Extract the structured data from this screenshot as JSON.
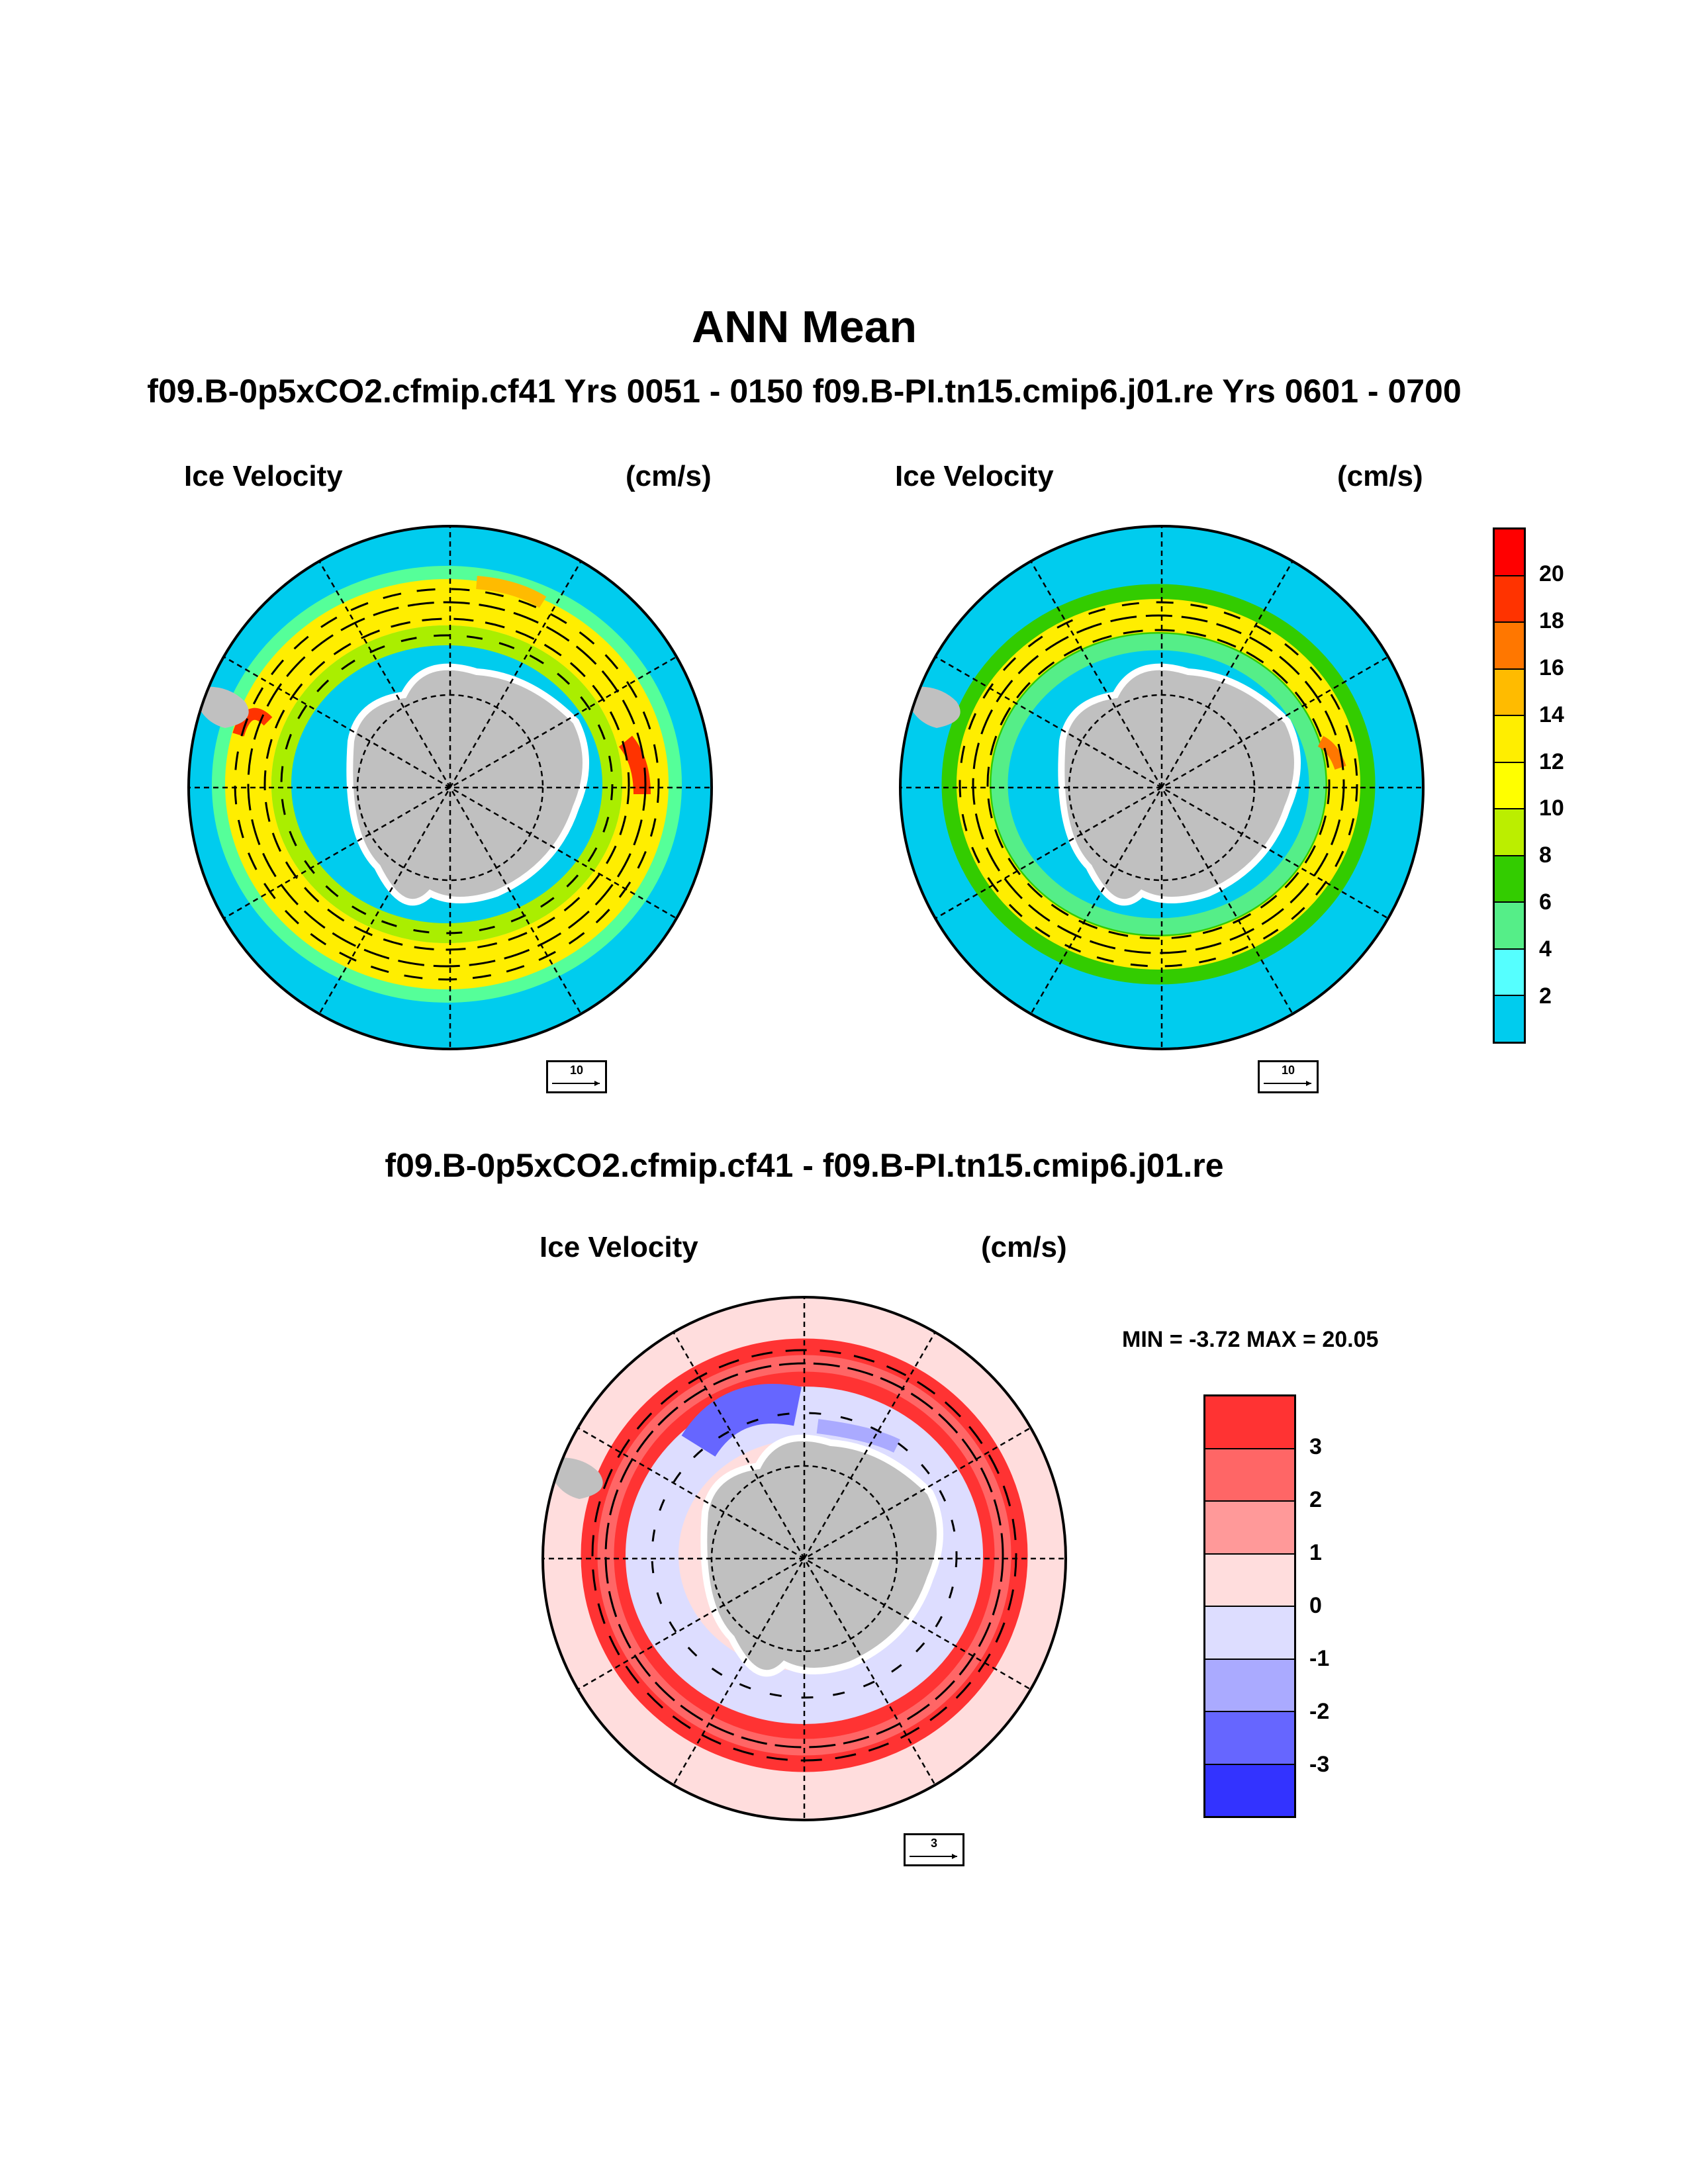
{
  "title": "ANN Mean",
  "subtitle": "f09.B-0p5xCO2.cfmip.cf41  Yrs 0051 - 0150  f09.B-PI.tn15.cmip6.j01.re  Yrs 0601 - 0700",
  "diff_title": "f09.B-0p5xCO2.cfmip.cf41 - f09.B-PI.tn15.cmip6.j01.re",
  "panels": [
    {
      "variable": "Ice Velocity",
      "units": "(cm/s)",
      "ref_vector": "10"
    },
    {
      "variable": "Ice Velocity",
      "units": "(cm/s)",
      "ref_vector": "10"
    },
    {
      "variable": "Ice Velocity",
      "units": "(cm/s)",
      "ref_vector": "3"
    }
  ],
  "minmax": "MIN =  -3.72 MAX =  20.05",
  "colorbar_main": {
    "labels": [
      "20",
      "18",
      "16",
      "14",
      "12",
      "10",
      "8",
      "6",
      "4",
      "2"
    ],
    "colors": [
      "#ff0000",
      "#ff3300",
      "#ff7700",
      "#ffbb00",
      "#ffee00",
      "#ffff00",
      "#bbee00",
      "#33cc00",
      "#55ee88",
      "#55ffff",
      "#00ccee"
    ]
  },
  "colorbar_diff": {
    "labels": [
      "3",
      "2",
      "1",
      "0",
      "-1",
      "-2",
      "-3"
    ],
    "colors": [
      "#ff3333",
      "#ff6666",
      "#ff9999",
      "#ffdddd",
      "#ddddff",
      "#aaaaff",
      "#6666ff",
      "#3333ff"
    ]
  },
  "map_colors": {
    "ocean_main": "#00ccee",
    "ocean_diff": "#ffdddd",
    "land": "#c0c0c0",
    "ice_edge": "#ffffff"
  }
}
